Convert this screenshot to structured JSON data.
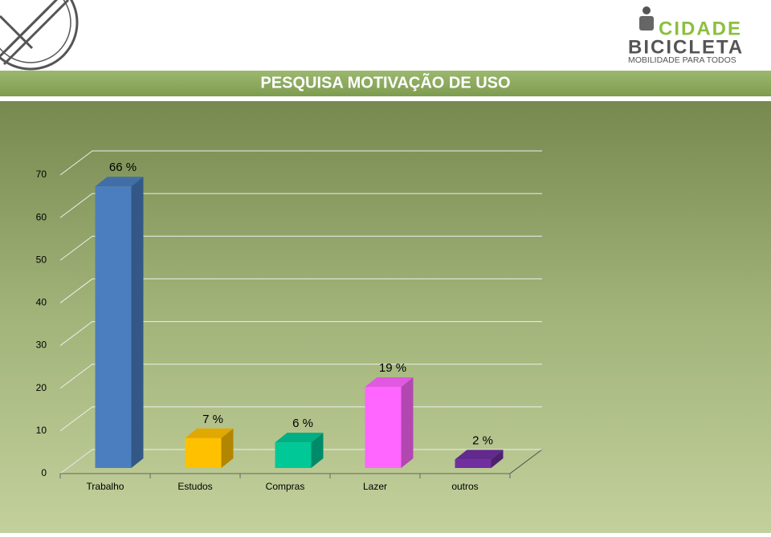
{
  "header": {
    "title": "PESQUISA MOTIVAÇÃO DE USO",
    "logo_line1": "CIDADE",
    "logo_line2": "BICICLETA",
    "logo_tagline": "MOBILIDADE PARA TODOS"
  },
  "chart_data": {
    "type": "bar3d",
    "categories": [
      "Trabalho",
      "Estudos",
      "Compras",
      "Lazer",
      "outros"
    ],
    "values": [
      66,
      7,
      6,
      19,
      2
    ],
    "value_labels": [
      "66 %",
      "7 %",
      "6 %",
      "19 %",
      "2 %"
    ],
    "colors": [
      "#4a7ebf",
      "#ffc000",
      "#00c896",
      "#ff66ff",
      "#7030a0"
    ],
    "ylim": [
      0,
      70
    ],
    "yticks": [
      0,
      10,
      20,
      30,
      40,
      50,
      60,
      70
    ],
    "grid": true
  }
}
